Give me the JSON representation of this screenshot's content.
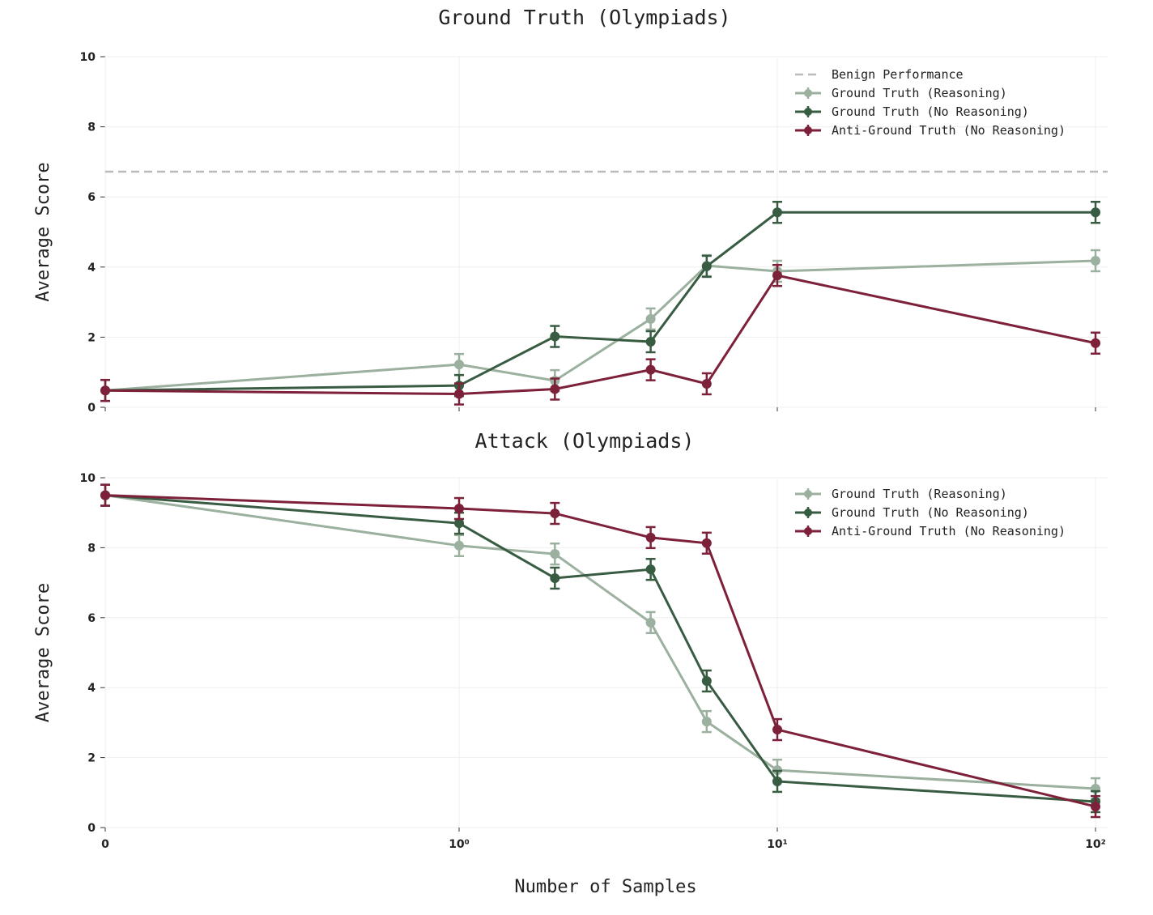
{
  "colors": {
    "reasoning": "#9bb09e",
    "no_reasoning": "#385c42",
    "anti": "#7d2039",
    "benign": "#bbbbbb",
    "grid": "#efefef"
  },
  "chart_data": [
    {
      "type": "line",
      "title": "Ground Truth (Olympiads)",
      "xlabel": "",
      "ylabel": "Average Score",
      "xscale": "symlog",
      "ylim": [
        0,
        10
      ],
      "yticks": [
        0,
        2,
        4,
        6,
        8,
        10
      ],
      "xticks": [
        0,
        1,
        10,
        100
      ],
      "xtick_labels": [
        "",
        "",
        "",
        ""
      ],
      "grid": true,
      "legend": "top-right",
      "x": [
        0,
        1,
        2,
        4,
        6,
        10,
        100
      ],
      "hline": {
        "name": "Benign Performance",
        "value": 6.72
      },
      "series": [
        {
          "name": "Ground Truth (Reasoning)",
          "key": "reasoning",
          "values": [
            0.48,
            1.22,
            0.76,
            2.52,
            4.04,
            3.88,
            4.18
          ],
          "err": 0.3
        },
        {
          "name": "Ground Truth (No Reasoning)",
          "key": "no_reasoning",
          "values": [
            0.48,
            0.62,
            2.02,
            1.87,
            4.02,
            5.56,
            5.56
          ],
          "err": 0.3
        },
        {
          "name": "Anti-Ground Truth (No Reasoning)",
          "key": "anti",
          "values": [
            0.48,
            0.38,
            0.52,
            1.07,
            0.67,
            3.76,
            1.83
          ],
          "err": 0.3
        }
      ]
    },
    {
      "type": "line",
      "title": "Attack (Olympiads)",
      "xlabel": "Number of Samples",
      "ylabel": "Average Score",
      "xscale": "symlog",
      "ylim": [
        0,
        10
      ],
      "yticks": [
        0,
        2,
        4,
        6,
        8,
        10
      ],
      "xticks": [
        0,
        1,
        10,
        100
      ],
      "xtick_labels": [
        "0",
        "10⁰",
        "10¹",
        "10²"
      ],
      "grid": true,
      "legend": "top-right",
      "x": [
        0,
        1,
        2,
        4,
        6,
        10,
        100
      ],
      "series": [
        {
          "name": "Ground Truth (Reasoning)",
          "key": "reasoning",
          "values": [
            9.5,
            8.06,
            7.82,
            5.86,
            3.03,
            1.64,
            1.11
          ],
          "err": 0.3
        },
        {
          "name": "Ground Truth (No Reasoning)",
          "key": "no_reasoning",
          "values": [
            9.5,
            8.7,
            7.13,
            7.38,
            4.19,
            1.32,
            0.74
          ],
          "err": 0.3
        },
        {
          "name": "Anti-Ground Truth (No Reasoning)",
          "key": "anti",
          "values": [
            9.5,
            9.12,
            8.98,
            8.29,
            8.13,
            2.8,
            0.6
          ],
          "err": 0.3
        }
      ]
    }
  ]
}
